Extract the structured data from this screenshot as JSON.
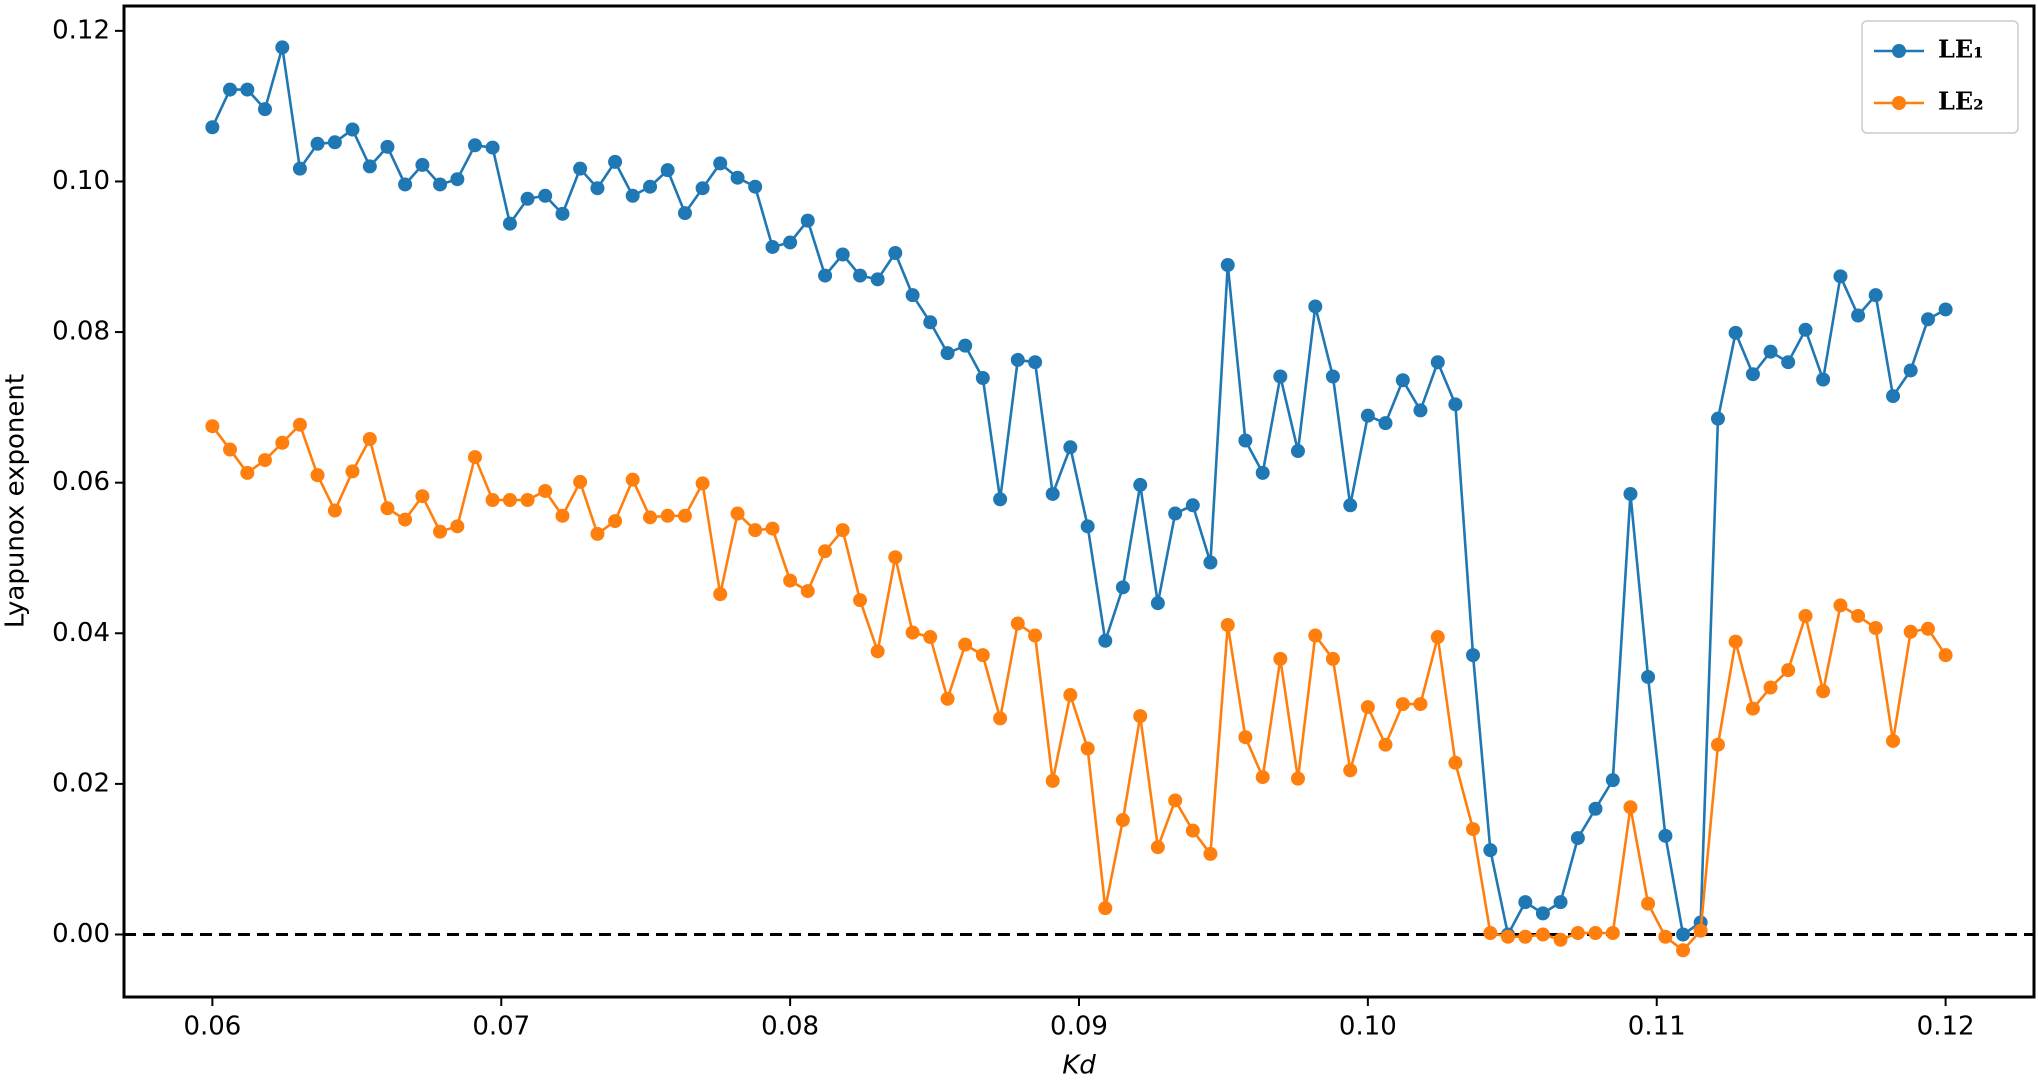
{
  "chart_data": {
    "type": "line",
    "x_label": "Kd",
    "y_label": "Lyapunox exponent",
    "x": [
      0.06,
      0.06061,
      0.06121,
      0.06182,
      0.06242,
      0.06303,
      0.06364,
      0.06424,
      0.06485,
      0.06545,
      0.06606,
      0.06667,
      0.06727,
      0.06788,
      0.06848,
      0.06909,
      0.0697,
      0.0703,
      0.07091,
      0.07152,
      0.07212,
      0.07273,
      0.07333,
      0.07394,
      0.07455,
      0.07515,
      0.07576,
      0.07636,
      0.07697,
      0.07758,
      0.07818,
      0.07879,
      0.07939,
      0.08,
      0.08061,
      0.08121,
      0.08182,
      0.08242,
      0.08303,
      0.08364,
      0.08424,
      0.08485,
      0.08545,
      0.08606,
      0.08667,
      0.08727,
      0.08788,
      0.08848,
      0.08909,
      0.0897,
      0.0903,
      0.09091,
      0.09152,
      0.09212,
      0.09273,
      0.09333,
      0.09394,
      0.09455,
      0.09515,
      0.09576,
      0.09636,
      0.09697,
      0.09758,
      0.09818,
      0.09879,
      0.09939,
      0.1,
      0.10061,
      0.10121,
      0.10182,
      0.10242,
      0.10303,
      0.10364,
      0.10424,
      0.10485,
      0.10545,
      0.10606,
      0.10667,
      0.10727,
      0.10788,
      0.10848,
      0.10909,
      0.1097,
      0.1103,
      0.11091,
      0.11152,
      0.11212,
      0.11273,
      0.11333,
      0.11394,
      0.11455,
      0.11515,
      0.11576,
      0.11636,
      0.11697,
      0.11758,
      0.11818,
      0.11879,
      0.11939,
      0.12
    ],
    "series": [
      {
        "name": "LE₁",
        "color": "#1f77b4",
        "values": [
          0.1072,
          0.1122,
          0.1122,
          0.1096,
          0.1178,
          0.1017,
          0.105,
          0.1052,
          0.1069,
          0.102,
          0.1046,
          0.0996,
          0.1022,
          0.0996,
          0.1003,
          0.1048,
          0.1045,
          0.0944,
          0.0977,
          0.0981,
          0.0957,
          0.1017,
          0.0991,
          0.1026,
          0.0981,
          0.0993,
          0.1015,
          0.0958,
          0.0991,
          0.1024,
          0.1005,
          0.0993,
          0.0913,
          0.0919,
          0.0948,
          0.0875,
          0.0903,
          0.0875,
          0.087,
          0.0905,
          0.0849,
          0.0813,
          0.0772,
          0.0782,
          0.0739,
          0.0578,
          0.0763,
          0.076,
          0.0585,
          0.0647,
          0.0542,
          0.039,
          0.0461,
          0.0597,
          0.044,
          0.0559,
          0.057,
          0.0494,
          0.0889,
          0.0656,
          0.0613,
          0.0741,
          0.0642,
          0.0834,
          0.0741,
          0.057,
          0.0689,
          0.0679,
          0.0736,
          0.0696,
          0.076,
          0.0704,
          0.0371,
          0.0112,
          0.0,
          0.0043,
          0.0028,
          0.0043,
          0.0128,
          0.0167,
          0.0205,
          0.0585,
          0.0342,
          0.0131,
          0.0,
          0.0016,
          0.0685,
          0.0799,
          0.0744,
          0.0774,
          0.076,
          0.0803,
          0.0737,
          0.0874,
          0.0822,
          0.0849,
          0.0715,
          0.0749,
          0.0817,
          0.083
        ]
      },
      {
        "name": "LE₂",
        "color": "#ff7f0e",
        "values": [
          0.0675,
          0.0644,
          0.0613,
          0.063,
          0.0653,
          0.0677,
          0.061,
          0.0563,
          0.0615,
          0.0658,
          0.0566,
          0.0551,
          0.0582,
          0.0535,
          0.0542,
          0.0634,
          0.0577,
          0.0577,
          0.0577,
          0.0589,
          0.0556,
          0.0601,
          0.0532,
          0.0549,
          0.0604,
          0.0554,
          0.0556,
          0.0556,
          0.0599,
          0.0452,
          0.0559,
          0.0537,
          0.0539,
          0.047,
          0.0456,
          0.0509,
          0.0537,
          0.0444,
          0.0376,
          0.0501,
          0.0401,
          0.0395,
          0.0313,
          0.0385,
          0.0371,
          0.0287,
          0.0413,
          0.0397,
          0.0204,
          0.0318,
          0.0247,
          0.0035,
          0.0152,
          0.029,
          0.0116,
          0.0178,
          0.0138,
          0.0107,
          0.0411,
          0.0262,
          0.0209,
          0.0366,
          0.0207,
          0.0397,
          0.0366,
          0.0218,
          0.0302,
          0.0252,
          0.0306,
          0.0306,
          0.0395,
          0.0228,
          0.014,
          0.0002,
          -0.0003,
          -0.0003,
          0.0,
          -0.0007,
          0.0002,
          0.0002,
          0.0002,
          0.0169,
          0.0041,
          -0.0003,
          -0.0021,
          0.0005,
          0.0252,
          0.0389,
          0.03,
          0.0328,
          0.0351,
          0.0423,
          0.0323,
          0.0437,
          0.0423,
          0.0407,
          0.0257,
          0.0402,
          0.0406,
          0.0371
        ]
      }
    ],
    "xlim": [
      0.05694,
      0.12306
    ],
    "ylim": [
      -0.0083,
      0.1233
    ],
    "xticks": [
      0.06,
      0.07,
      0.08,
      0.09,
      {
        "value": 0.1,
        "label": "0.10"
      },
      0.11,
      0.12
    ],
    "yticks": [
      {
        "value": 0,
        "label": "0.00"
      },
      0.02,
      0.04,
      0.06,
      0.08,
      {
        "value": 0.1,
        "label": "0.10"
      },
      0.12
    ],
    "hline": 0,
    "legend": "upper right",
    "grid": false
  }
}
